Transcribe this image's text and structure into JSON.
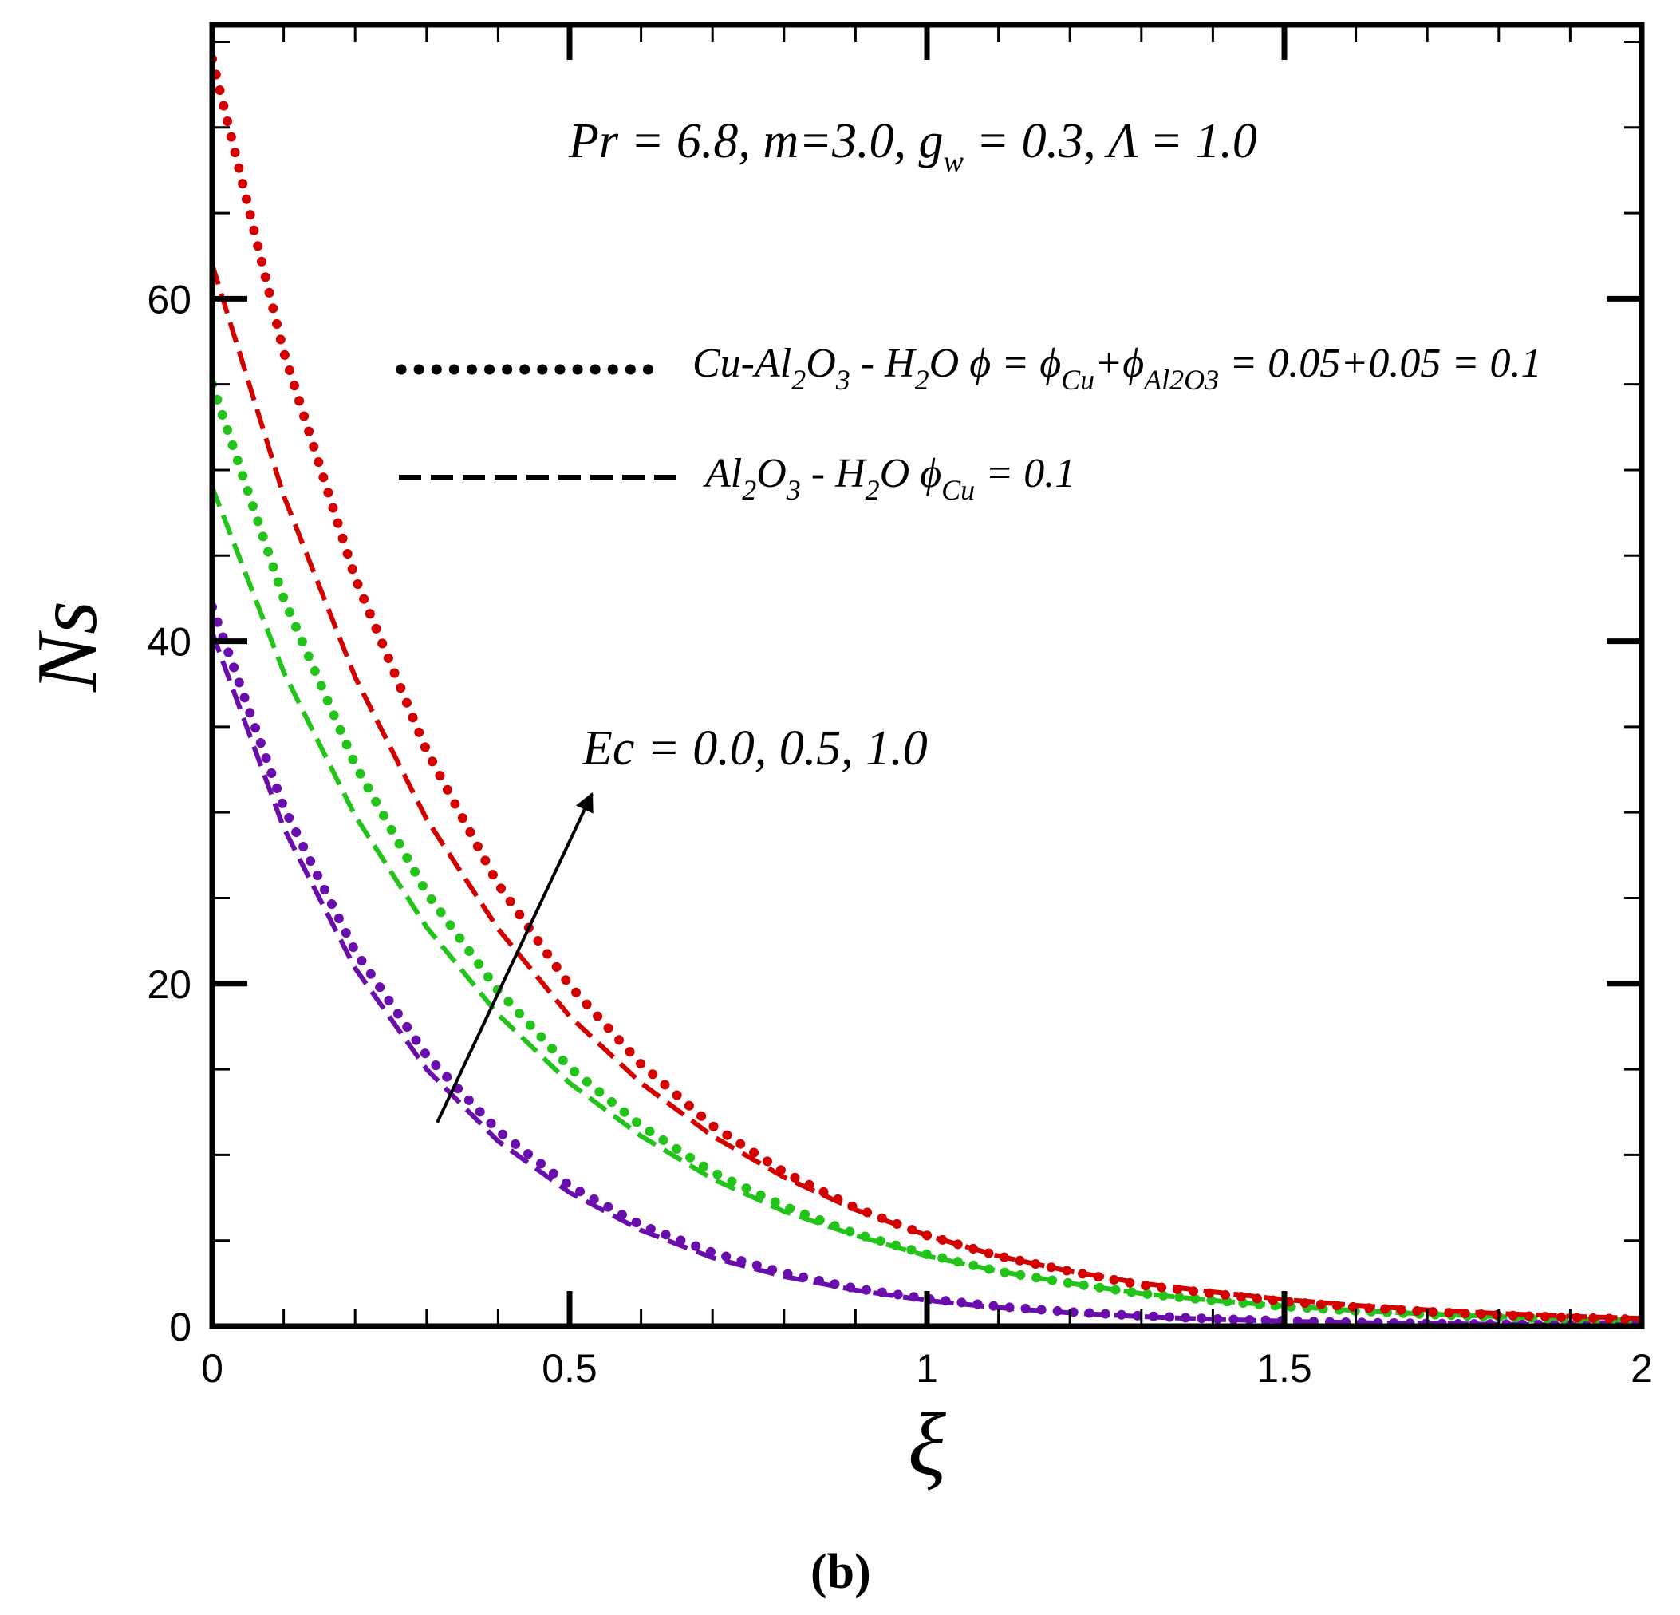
{
  "panel_label": "(b)",
  "annotations": {
    "params": {
      "pr": "Pr = 6.8, m=3.0, g",
      "gsub": "w",
      "rest": " = 0.3, Λ = 1.0"
    },
    "ec": "Ec = 0.0, 0.5, 1.0"
  },
  "legend": {
    "hybrid": {
      "parts": [
        {
          "t": "Cu-Al"
        },
        {
          "t": "2",
          "sub": true
        },
        {
          "t": "O"
        },
        {
          "t": "3",
          "sub": true
        },
        {
          "t": " - H"
        },
        {
          "t": "2",
          "sub": true
        },
        {
          "t": "O ϕ = ϕ"
        },
        {
          "t": "Cu",
          "sub": true
        },
        {
          "t": "+ϕ"
        },
        {
          "t": "Al2O3",
          "sub": true
        },
        {
          "t": " = 0.05+0.05 = 0.1"
        }
      ],
      "style": "dotted"
    },
    "mono": {
      "parts": [
        {
          "t": "Al"
        },
        {
          "t": "2",
          "sub": true
        },
        {
          "t": "O"
        },
        {
          "t": "3",
          "sub": true
        },
        {
          "t": " - H"
        },
        {
          "t": "2",
          "sub": true
        },
        {
          "t": "O ϕ"
        },
        {
          "t": "Cu",
          "sub": true
        },
        {
          "t": " = 0.1"
        }
      ],
      "style": "dashed"
    }
  },
  "chart_data": {
    "type": "line",
    "xlabel": "ξ",
    "ylabel": "Ns",
    "xlim": [
      0,
      2
    ],
    "ylim": [
      0,
      76
    ],
    "xticks": [
      {
        "v": 0,
        "label": "0"
      },
      {
        "v": 0.5,
        "label": "0.5"
      },
      {
        "v": 1,
        "label": "1"
      },
      {
        "v": 1.5,
        "label": "1.5"
      },
      {
        "v": 2,
        "label": "2"
      }
    ],
    "yticks": [
      {
        "v": 0,
        "label": "0"
      },
      {
        "v": 20,
        "label": "20"
      },
      {
        "v": 40,
        "label": "40"
      },
      {
        "v": 60,
        "label": "60"
      }
    ],
    "x": [
      0,
      0.1,
      0.2,
      0.3,
      0.4,
      0.5,
      0.6,
      0.7,
      0.8,
      0.9,
      1.0,
      1.1,
      1.2,
      1.3,
      1.4,
      1.5,
      1.6,
      1.7,
      1.8,
      1.9,
      2.0
    ],
    "series": [
      {
        "ec": "0.0",
        "style": "dotted",
        "color": "#6a0dad",
        "values": [
          42.0,
          30.3,
          21.9,
          15.8,
          11.4,
          8.2,
          5.9,
          4.3,
          3.1,
          2.2,
          1.6,
          1.15,
          0.83,
          0.6,
          0.43,
          0.31,
          0.22,
          0.16,
          0.12,
          0.08,
          0.06
        ]
      },
      {
        "ec": "0.0",
        "style": "dashed",
        "color": "#6a0dad",
        "values": [
          40.5,
          29.1,
          20.9,
          15.0,
          10.8,
          7.8,
          5.6,
          4.0,
          2.9,
          2.1,
          1.5,
          1.08,
          0.78,
          0.56,
          0.4,
          0.29,
          0.21,
          0.15,
          0.11,
          0.08,
          0.06
        ]
      },
      {
        "ec": "0.5",
        "style": "dotted",
        "color": "#22c41a",
        "values": [
          55.0,
          42.5,
          32.8,
          25.3,
          19.6,
          15.1,
          11.7,
          9.0,
          7.0,
          5.4,
          4.2,
          3.2,
          2.5,
          1.9,
          1.5,
          1.15,
          0.89,
          0.69,
          0.53,
          0.41,
          0.32
        ]
      },
      {
        "ec": "0.5",
        "style": "dashed",
        "color": "#22c41a",
        "values": [
          49.0,
          38.2,
          29.8,
          23.3,
          18.2,
          14.2,
          11.1,
          8.6,
          6.7,
          5.3,
          4.1,
          3.2,
          2.5,
          1.9,
          1.5,
          1.17,
          0.91,
          0.71,
          0.56,
          0.43,
          0.34
        ]
      },
      {
        "ec": "1.0",
        "style": "dotted",
        "color": "#d40000",
        "values": [
          74.0,
          56.9,
          43.7,
          33.6,
          25.8,
          19.9,
          15.3,
          11.7,
          9.0,
          6.9,
          5.3,
          4.1,
          3.2,
          2.4,
          1.9,
          1.44,
          1.11,
          0.85,
          0.65,
          0.5,
          0.39
        ]
      },
      {
        "ec": "1.0",
        "style": "dashed",
        "color": "#d40000",
        "values": [
          62.0,
          48.5,
          37.9,
          29.6,
          23.2,
          18.1,
          14.2,
          11.1,
          8.7,
          6.8,
          5.3,
          4.1,
          3.2,
          2.5,
          2.0,
          1.55,
          1.21,
          0.95,
          0.74,
          0.58,
          0.45
        ]
      }
    ]
  }
}
